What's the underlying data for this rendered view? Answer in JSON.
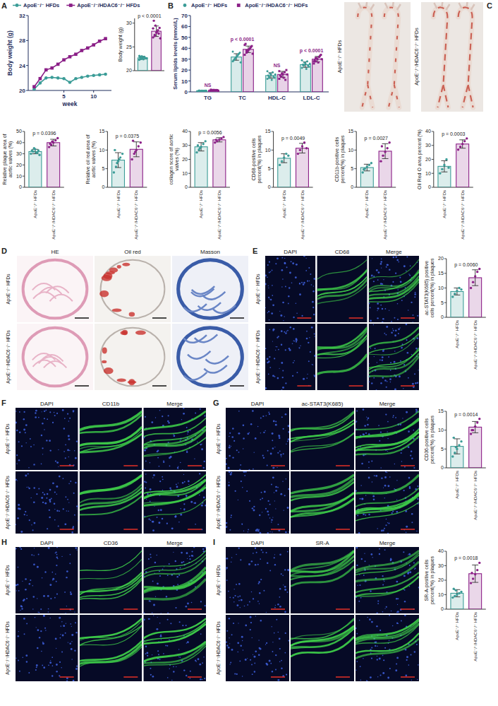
{
  "chart_data": [
    {
      "panel": "A",
      "type": "line",
      "x_label": "week",
      "y_label": "Body weight (g)",
      "x": [
        0,
        1,
        2,
        3,
        4,
        5,
        6,
        7,
        8,
        9,
        10,
        11,
        12
      ],
      "xlim": [
        -1,
        13
      ],
      "xticks": [
        5,
        10
      ],
      "ylim": [
        20,
        32
      ],
      "yticks": [
        20,
        24,
        28,
        32
      ],
      "legend": "top",
      "series": [
        {
          "name": "ApoE⁻/⁻ HFDs",
          "color": "#3b9c97",
          "marker": "circle",
          "values": [
            20.2,
            21.2,
            22.0,
            22.1,
            22.0,
            21.9,
            21.3,
            21.9,
            22.1,
            22.3,
            22.4,
            22.5,
            22.6
          ]
        },
        {
          "name": "ApoE⁻/⁻/HDAC6⁻/⁻ HFDs",
          "color": "#8b1f87",
          "marker": "square",
          "values": [
            20.6,
            21.9,
            23.3,
            23.6,
            24.2,
            24.9,
            25.4,
            25.8,
            26.4,
            26.8,
            27.3,
            27.9,
            28.3
          ]
        }
      ]
    },
    {
      "type": "bar",
      "y_label": "Body weight (g)",
      "categories": [
        null,
        null
      ],
      "tick_labels": "y",
      "values": [
        22.7,
        28.3
      ],
      "errors": [
        0.3,
        1.1
      ],
      "points": [
        [
          22.3,
          22.5,
          22.7,
          22.9,
          22.6,
          22.8,
          23.0,
          22.4,
          22.7,
          22.6,
          23.1,
          22.5
        ],
        [
          27.0,
          27.5,
          28.0,
          28.5,
          29.0,
          30.5,
          29.5,
          28.2,
          27.8,
          26.8,
          28.9,
          27.3
        ]
      ],
      "colors": [
        "#3b9c97",
        "#8b1f87"
      ],
      "ylim": [
        20,
        31
      ],
      "yticks": [
        20,
        25,
        30
      ],
      "annotation": "p < 0.0001"
    },
    {
      "panel": "B",
      "type": "bar",
      "y_label": "Serum lipids levels (mmol/L)",
      "categories": [
        "TG",
        "TC",
        "HDL-C",
        "LDL-C"
      ],
      "ylim": [
        0,
        70
      ],
      "yticks": [
        0,
        10,
        20,
        30,
        40,
        50,
        60,
        70
      ],
      "legend": "top",
      "series": [
        {
          "name": "ApoE⁻/⁻ HDFs",
          "color": "#3b9c97",
          "marker": "circle",
          "values": [
            1.0,
            32,
            15,
            25
          ],
          "errors": [
            0.2,
            3,
            2.5,
            2.5
          ],
          "points": [
            [
              0.8,
              1.0,
              1.2,
              0.9,
              1.1,
              1.3,
              0.7,
              1.0,
              0.9,
              1.2
            ],
            [
              28,
              30,
              32,
              34,
              36,
              29,
              31,
              33,
              35,
              27,
              37,
              30
            ],
            [
              12,
              14,
              16,
              18,
              13,
              15,
              17,
              11,
              14,
              16,
              19,
              13
            ],
            [
              22,
              24,
              26,
              28,
              23,
              25,
              27,
              21,
              24,
              26,
              29,
              25
            ]
          ]
        },
        {
          "name": "ApoE⁻/⁻/HDAC6⁻/⁻ HDFs",
          "color": "#8b1f87",
          "marker": "square",
          "values": [
            1.5,
            39,
            16,
            30
          ],
          "errors": [
            0.3,
            3,
            2.8,
            2.5
          ],
          "points": [
            [
              1.2,
              1.5,
              1.8,
              1.4,
              1.6,
              2.0,
              1.3,
              1.5,
              1.7,
              1.1
            ],
            [
              34,
              36,
              38,
              40,
              42,
              44,
              37,
              39,
              41,
              35,
              43,
              38
            ],
            [
              12,
              14,
              16,
              18,
              20,
              15,
              17,
              13,
              11,
              16,
              19,
              14
            ],
            [
              26,
              28,
              30,
              32,
              34,
              29,
              31,
              27,
              33,
              30,
              28,
              31
            ]
          ]
        }
      ],
      "annotations": [
        "NS",
        "p < 0.0001",
        "NS",
        "p < 0.0001"
      ]
    },
    {
      "type": "bar",
      "y_label": "Relative plaque area of aortic valves (%)",
      "categories": [
        "ApoE⁻/⁻ HFDs",
        "ApoE⁻/⁻/HDAC6⁻/⁻ HFDs"
      ],
      "values": [
        32,
        40
      ],
      "errors": [
        2,
        3
      ],
      "points": [
        [
          30,
          32,
          34,
          31,
          29,
          33,
          35,
          31,
          33
        ],
        [
          36,
          38,
          40,
          42,
          44,
          39,
          41
        ]
      ],
      "colors": [
        "#3b9c97",
        "#8b1f87"
      ],
      "ylim": [
        0,
        50
      ],
      "yticks": [
        0,
        10,
        20,
        30,
        40,
        50
      ],
      "annotation": "p = 0.0396"
    },
    {
      "type": "bar",
      "y_label": "Relative oil red area of aortic valves (%)",
      "categories": [
        "ApoE⁻/⁻ HFDs",
        "ApoE⁻/⁻/HDAC6⁻/⁻ HFDs"
      ],
      "values": [
        7.3,
        10.2
      ],
      "errors": [
        2,
        2
      ],
      "points": [
        [
          4,
          5.5,
          7,
          8,
          9,
          10,
          6.5,
          7.5
        ],
        [
          7.5,
          9,
          10,
          11,
          12,
          12.5,
          9.5
        ]
      ],
      "colors": [
        "#3b9c97",
        "#8b1f87"
      ],
      "ylim": [
        0,
        15
      ],
      "yticks": [
        0,
        5,
        10,
        15
      ],
      "annotation": "p = 0.0375"
    },
    {
      "type": "bar",
      "y_label": "collagen score of aortic valves (%)",
      "categories": [
        "ApoE⁻/⁻ HFDs",
        "ApoE⁻/⁻/HDAC6⁻/⁻ HFDs"
      ],
      "values": [
        29,
        34
      ],
      "errors": [
        3,
        1.5
      ],
      "points": [
        [
          25,
          27,
          29,
          31,
          33,
          30,
          28
        ],
        [
          32,
          33,
          34,
          35,
          36,
          34
        ]
      ],
      "colors": [
        "#3b9c97",
        "#8b1f87"
      ],
      "ylim": [
        0,
        40
      ],
      "yticks": [
        0,
        10,
        20,
        30,
        40
      ],
      "annotation": "p = 0.0056"
    },
    {
      "type": "bar",
      "y_label": "CD68-positive cells percent(%) in plaques",
      "categories": [
        "ApoE⁻/⁻ HFDs",
        "ApoE⁻/⁻/HDAC6⁻/⁻ HFDs"
      ],
      "values": [
        7.8,
        10.5
      ],
      "errors": [
        1.2,
        1.3
      ],
      "points": [
        [
          6,
          7,
          8,
          9,
          8.5
        ],
        [
          9,
          10,
          11,
          12,
          10.5
        ]
      ],
      "colors": [
        "#3b9c97",
        "#8b1f87"
      ],
      "ylim": [
        0,
        15
      ],
      "yticks": [
        0,
        5,
        10,
        15
      ],
      "annotation": "p = 0.0049"
    },
    {
      "type": "bar",
      "y_label": "CD11b-positive cells percent(%) in plaques",
      "categories": [
        "ApoE⁻/⁻ HFDs",
        "ApoE⁻/⁻/HDAC6⁻/⁻ HFDs"
      ],
      "values": [
        5.3,
        9.7
      ],
      "errors": [
        0.9,
        2
      ],
      "points": [
        [
          4,
          5,
          5.5,
          6,
          6.5,
          4.8
        ],
        [
          7,
          8.5,
          9.5,
          10.5,
          12,
          11
        ]
      ],
      "colors": [
        "#3b9c97",
        "#8b1f87"
      ],
      "ylim": [
        0,
        15
      ],
      "yticks": [
        0,
        5,
        10,
        15
      ],
      "annotation": "p = 0.0027"
    },
    {
      "type": "bar",
      "y_label": "Oil Red O area percent (%)",
      "categories": [
        "ApoE⁻/⁻ HFDs",
        "ApoE⁻/⁻/HDAC6⁻/⁻ HFDs"
      ],
      "values": [
        15,
        31
      ],
      "errors": [
        4,
        3
      ],
      "points": [
        [
          10,
          13,
          16,
          20,
          14
        ],
        [
          27,
          29,
          31,
          33,
          35
        ]
      ],
      "colors": [
        "#3b9c97",
        "#8b1f87"
      ],
      "ylim": [
        0,
        40
      ],
      "yticks": [
        0,
        10,
        20,
        30,
        40
      ],
      "annotation": "p = 0.0003"
    },
    {
      "type": "bar",
      "y_label": "ac-STAT3(K685) positive cells percent(%) in plaques",
      "categories": [
        "ApoE⁻/⁻ HFDs",
        "ApoE⁻/⁻/HDAC6⁻/⁻ HFDs"
      ],
      "values": [
        8.8,
        13.5
      ],
      "errors": [
        1.2,
        2.7
      ],
      "points": [
        [
          7,
          8,
          9,
          10,
          9.5
        ],
        [
          10,
          12,
          14,
          15.5,
          16.5
        ]
      ],
      "colors": [
        "#3b9c97",
        "#8b1f87"
      ],
      "ylim": [
        0,
        20
      ],
      "yticks": [
        0,
        5,
        10,
        15,
        20
      ],
      "annotation": "p = 0.0060"
    },
    {
      "type": "bar",
      "y_label": "CD36-positive cells percent(%) in plaques",
      "categories": [
        "ApoE⁻/⁻ HFDs",
        "ApoE⁻/⁻/HDAC6⁻/⁻ HFDs"
      ],
      "values": [
        5.7,
        10.8
      ],
      "errors": [
        2,
        1.5
      ],
      "points": [
        [
          3,
          4,
          5,
          6,
          7,
          8,
          5.5
        ],
        [
          9,
          10,
          11,
          12,
          13,
          10
        ]
      ],
      "colors": [
        "#3b9c97",
        "#8b1f87"
      ],
      "ylim": [
        0,
        15
      ],
      "yticks": [
        0,
        5,
        10,
        15
      ],
      "annotation": "p = 0.0014"
    },
    {
      "type": "bar",
      "y_label": "SR-A-positive cells percent(%) in plaques",
      "categories": [
        "ApoE⁻/⁻ HFDs",
        "ApoE⁻/⁻/HDAC6⁻/⁻ HFDs"
      ],
      "values": [
        11,
        24.5
      ],
      "errors": [
        2.5,
        6
      ],
      "points": [
        [
          8,
          9,
          10,
          11,
          12,
          14,
          13
        ],
        [
          18,
          21,
          24,
          27,
          32,
          25
        ]
      ],
      "colors": [
        "#3b9c97",
        "#8b1f87"
      ],
      "ylim": [
        0,
        40
      ],
      "yticks": [
        0,
        10,
        20,
        30,
        40
      ],
      "annotation": "p = 0.0018"
    }
  ],
  "photo_panel": {
    "letter": "C",
    "rows": [
      "ApoE⁻/⁻ HFDs",
      "ApoE⁻/⁻/HDAC6⁻/⁻ HFDs"
    ]
  },
  "image_panels": [
    {
      "letter": "D",
      "columns": [
        "HE",
        "Oil red",
        "Masson"
      ],
      "rows": [
        "ApoE⁻/⁻ HFDs",
        "ApoE⁻/⁻/HDAC6⁻/⁻ HFDs"
      ]
    },
    {
      "letter": "E",
      "columns": [
        "DAPI",
        "CD68",
        "Merge"
      ],
      "rows": [
        "ApoE⁻/⁻ HFDs",
        "ApoE⁻/⁻/HDAC6⁻/⁻ HFDs"
      ]
    },
    {
      "letter": "F",
      "columns": [
        "DAPI",
        "CD11b",
        "Merge"
      ],
      "rows": [
        "ApoE⁻/⁻ HFDs",
        "ApoE⁻/⁻/HDAC6⁻/⁻ HFDs"
      ]
    },
    {
      "letter": "G",
      "columns": [
        "DAPI",
        "ac-STAT3(K685)",
        "Merge"
      ],
      "rows": [
        "ApoE⁻/⁻ HFDs",
        "ApoE⁻/⁻/HDAC6⁻/⁻ HFDs"
      ]
    },
    {
      "letter": "H",
      "columns": [
        "DAPI",
        "CD36",
        "Merge"
      ],
      "rows": [
        "ApoE⁻/⁻ HFDs",
        "ApoE⁻/⁻/HDAC6⁻/⁻ HFDs"
      ]
    },
    {
      "letter": "I",
      "columns": [
        "DAPI",
        "SR-A",
        "Merge"
      ],
      "rows": [
        "ApoE⁻/⁻ HFDs",
        "ApoE⁻/⁻/HDAC6⁻/⁻ HFDs"
      ]
    }
  ]
}
